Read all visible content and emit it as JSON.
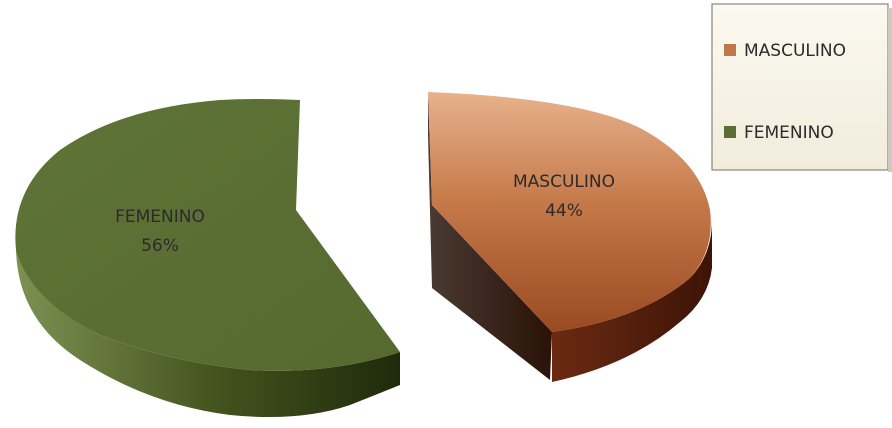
{
  "chart_data": {
    "type": "pie",
    "style": "3d-exploded",
    "slices": [
      {
        "label": "MASCULINO",
        "value": 44,
        "percent_label": "44%",
        "color": "#b86a3c"
      },
      {
        "label": "FEMENINO",
        "value": 56,
        "percent_label": "56%",
        "color": "#5b6f34"
      }
    ],
    "legend": {
      "position": "top-right",
      "entries": [
        {
          "label": "MASCULINO",
          "color": "#b86a3c"
        },
        {
          "label": "FEMENINO",
          "color": "#5b6f34"
        }
      ]
    }
  }
}
